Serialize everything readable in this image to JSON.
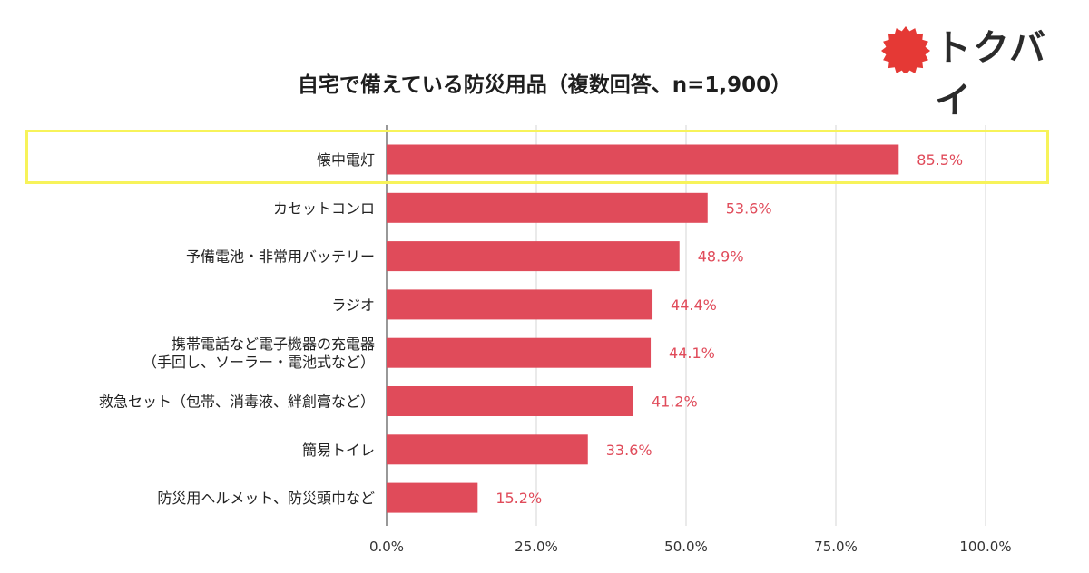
{
  "logo": {
    "text": "トクバイ",
    "icon": "red-sunburst-badge",
    "color": "#e53935"
  },
  "chart_data": {
    "type": "bar",
    "orientation": "horizontal",
    "title": "自宅で備えている防災用品（複数回答、n=1,900）",
    "categories": [
      [
        "懐中電灯"
      ],
      [
        "カセットコンロ"
      ],
      [
        "予備電池・非常用バッテリー"
      ],
      [
        "ラジオ"
      ],
      [
        "携帯電話など電子機器の充電器",
        "（手回し、ソーラー・電池式など）"
      ],
      [
        "救急セット（包帯、消毒液、絆創膏など）"
      ],
      [
        "簡易トイレ"
      ],
      [
        "防災用ヘルメット、防災頭巾など"
      ]
    ],
    "values": [
      85.5,
      53.6,
      48.9,
      44.4,
      44.1,
      41.2,
      33.6,
      15.2
    ],
    "value_labels": [
      "85.5%",
      "53.6%",
      "48.9%",
      "44.4%",
      "44.1%",
      "41.2%",
      "33.6%",
      "15.2%"
    ],
    "xlim": [
      0,
      100
    ],
    "xticks": [
      0,
      25,
      50,
      75,
      100
    ],
    "xtick_labels": [
      "0.0%",
      "25.0%",
      "50.0%",
      "75.0%",
      "100.0%"
    ],
    "grid": "vertical",
    "bar_color": "#e04b5a",
    "label_color": "#e04b5a",
    "highlighted_category_index": 0,
    "highlight_color": "#f7f35a"
  }
}
